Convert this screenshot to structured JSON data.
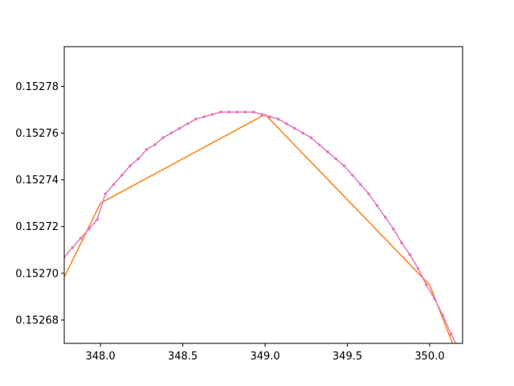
{
  "chart_data": {
    "type": "line",
    "title": "",
    "xlabel": "",
    "ylabel": "",
    "xlim": [
      347.78,
      350.2
    ],
    "ylim": [
      0.15267,
      0.152797
    ],
    "xticks": [
      348.0,
      348.5,
      349.0,
      349.5,
      350.0
    ],
    "xtick_labels": [
      "348.0",
      "348.5",
      "349.0",
      "349.5",
      "350.0"
    ],
    "yticks": [
      0.15268,
      0.1527,
      0.15272,
      0.15274,
      0.15276,
      0.15278
    ],
    "ytick_labels": [
      "0.15268",
      "0.15270",
      "0.15272",
      "0.15274",
      "0.15276",
      "0.15278"
    ],
    "grid": false,
    "legend": "none",
    "series": [
      {
        "color": "#ff7f0e",
        "markers": false,
        "x": [
          347.75,
          348.0,
          349.0,
          350.0,
          350.25
        ],
        "y": [
          0.152694,
          0.15273,
          0.152768,
          0.152695,
          0.15265
        ]
      },
      {
        "color": "#e377c2",
        "markers": true,
        "x": [
          347.78,
          347.83,
          347.88,
          347.93,
          347.98,
          348.03,
          348.08,
          348.13,
          348.18,
          348.23,
          348.28,
          348.33,
          348.38,
          348.43,
          348.48,
          348.53,
          348.58,
          348.63,
          348.68,
          348.73,
          348.78,
          348.83,
          348.88,
          348.93,
          348.98,
          349.03,
          349.08,
          349.13,
          349.18,
          349.23,
          349.28,
          349.33,
          349.38,
          349.43,
          349.48,
          349.53,
          349.58,
          349.63,
          349.68,
          349.73,
          349.78,
          349.83,
          349.88,
          349.93,
          349.98,
          350.03,
          350.08,
          350.13,
          350.18
        ],
        "y": [
          0.152707,
          0.152711,
          0.152715,
          0.152719,
          0.152723,
          0.152734,
          0.152738,
          0.152742,
          0.152746,
          0.152749,
          0.152753,
          0.152755,
          0.152758,
          0.15276,
          0.152762,
          0.152764,
          0.152766,
          0.152767,
          0.152768,
          0.152769,
          0.152769,
          0.152769,
          0.152769,
          0.152769,
          0.152768,
          0.152767,
          0.152766,
          0.152764,
          0.152762,
          0.15276,
          0.152758,
          0.152755,
          0.152752,
          0.152749,
          0.152746,
          0.152742,
          0.152738,
          0.152734,
          0.152729,
          0.152724,
          0.152719,
          0.152713,
          0.152708,
          0.152702,
          0.152695,
          0.152689,
          0.152682,
          0.152674,
          0.152667
        ]
      }
    ]
  }
}
